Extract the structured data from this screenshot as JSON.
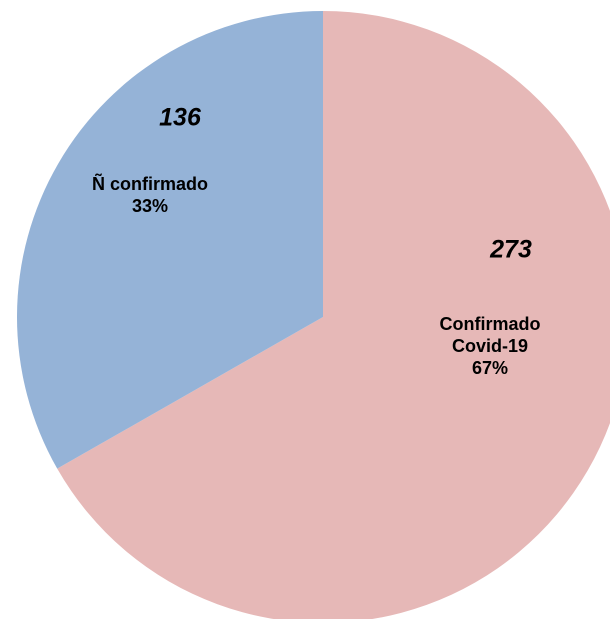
{
  "chart_data": {
    "type": "pie",
    "categories": [
      "Confirmado Covid-19",
      "Ñ confirmado"
    ],
    "values": [
      273,
      136
    ],
    "percentages": [
      67,
      33
    ],
    "percentage_labels": [
      "67%",
      "33%"
    ],
    "colors": [
      "#e6b8b7",
      "#95b3d7"
    ]
  }
}
